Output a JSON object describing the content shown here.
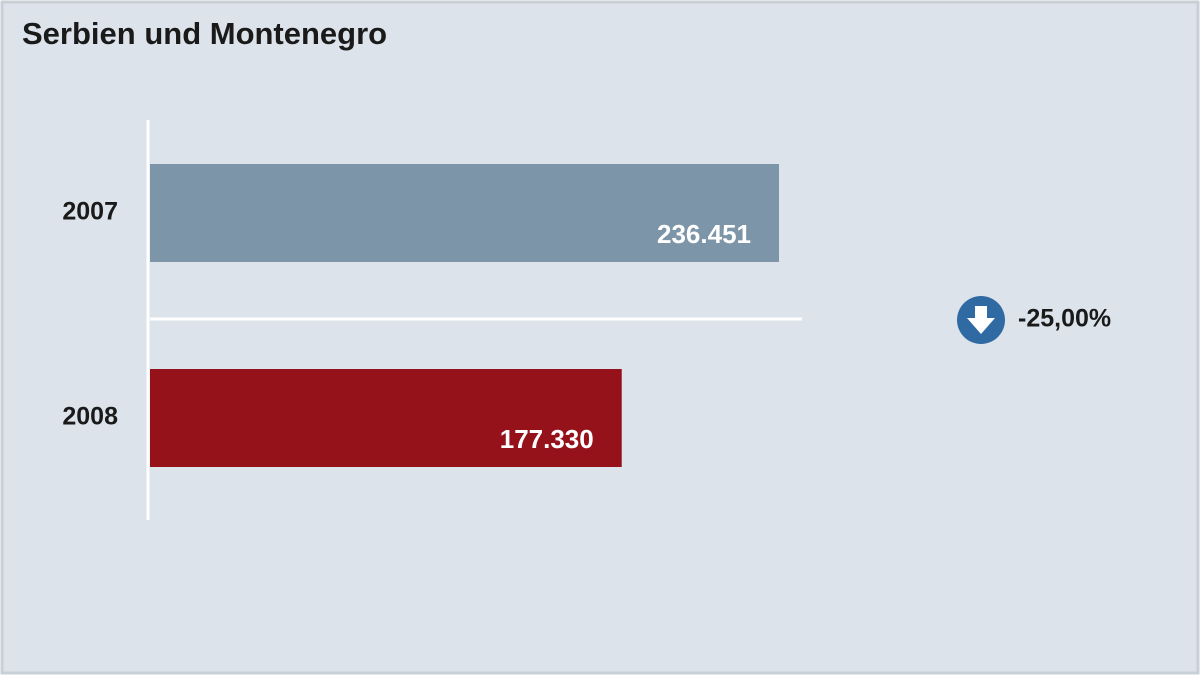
{
  "chart_data": {
    "type": "barh",
    "title": "Serbien und Montenegro",
    "categories": [
      "2007",
      "2008"
    ],
    "values": [
      236451,
      177330
    ],
    "value_labels": [
      "236.451",
      "177.330"
    ],
    "colors": [
      "#7d95a8",
      "#96121a"
    ],
    "annotation": "-25,00%",
    "annotation_color": "#2f6aa3"
  }
}
